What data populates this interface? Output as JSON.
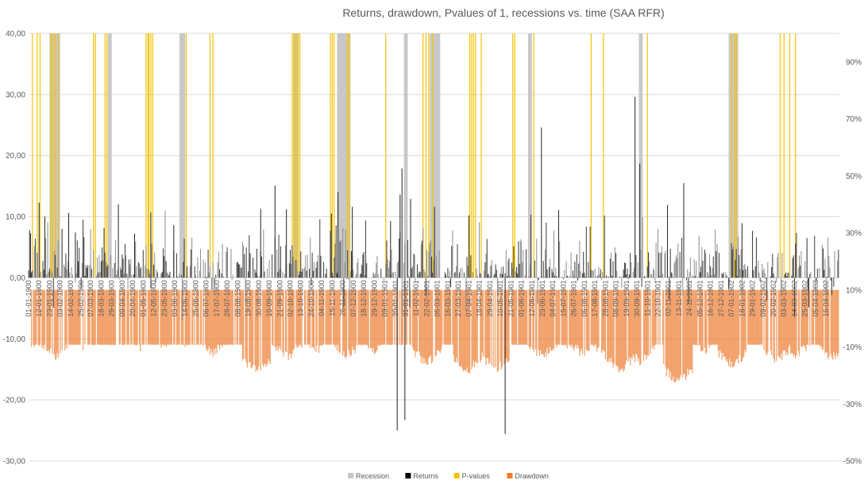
{
  "chart_data": {
    "type": "bar",
    "title": "Returns, drawdown, Pvalues of 1, recessions vs. time (SAA RFR)",
    "left_axis": {
      "ylim": [
        -30,
        40
      ],
      "ticks": [
        -30,
        -20,
        -10,
        0,
        10,
        20,
        30,
        40
      ],
      "tick_labels": [
        "-30,00",
        "-20,00",
        "-10,00",
        "0,00",
        "10,00",
        "20,00",
        "30,00",
        "40,00"
      ]
    },
    "right_axis": {
      "ylim": [
        -50,
        100
      ],
      "ticks": [
        -50,
        -30,
        -10,
        10,
        30,
        50,
        70,
        90
      ],
      "tick_labels": [
        "-50%",
        "-30%",
        "-10%",
        "10%",
        "30%",
        "50%",
        "70%",
        "90%"
      ]
    },
    "x_axis": {
      "start": "01-01-1900",
      "end": "30-04-1902",
      "tick_labels": [
        "01-01-1900",
        "12-01-1900",
        "23-01-1900",
        "03-02-1900",
        "14-02-1900",
        "25-02-1900",
        "07-03-1900",
        "18-03-1900",
        "29-03-1900",
        "09-04-1900",
        "20-04-1900",
        "01-05-1900",
        "12-05-1900",
        "23-05-1900",
        "03-06-1900",
        "14-06-1900",
        "25-06-1900",
        "06-07-1900",
        "17-07-1900",
        "28-07-1900",
        "08-08-1900",
        "19-08-1900",
        "30-08-1900",
        "10-09-1900",
        "21-09-1900",
        "02-10-1900",
        "13-10-1900",
        "24-10-1900",
        "04-11-1900",
        "15-11-1900",
        "26-11-1900",
        "07-12-1900",
        "18-12-1900",
        "29-12-1900",
        "09-01-1901",
        "20-01-1901",
        "31-01-1901",
        "11-02-1901",
        "22-02-1901",
        "05-03-1901",
        "16-03-1901",
        "27-03-1901",
        "07-04-1901",
        "18-04-1901",
        "29-04-1901",
        "10-05-1901",
        "21-05-1901",
        "01-06-1901",
        "12-06-1901",
        "23-06-1901",
        "04-07-1901",
        "15-07-1901",
        "26-07-1901",
        "06-08-1901",
        "17-08-1901",
        "28-08-1901",
        "08-09-1901",
        "19-09-1901",
        "30-09-1901",
        "11-10-1901",
        "22-10-1901",
        "02-11-1901",
        "13-11-1901",
        "24-11-1901",
        "05-12-1901",
        "16-12-1901",
        "27-12-1901",
        "07-01-1902",
        "18-01-1902",
        "29-01-1902",
        "09-02-1902",
        "20-02-1902",
        "03-03-1902",
        "14-03-1902",
        "25-03-1902",
        "05-04-1902",
        "16-04-1902"
      ]
    },
    "recession_periods": [
      [
        "23-01-1900",
        "03-02-1900"
      ],
      [
        "25-03-1900",
        "29-03-1900"
      ],
      [
        "08-06-1900",
        "14-06-1900"
      ],
      [
        "05-10-1900",
        "11-10-1900"
      ],
      [
        "20-11-1900",
        "04-12-1900"
      ],
      [
        "29-01-1901",
        "02-02-1901"
      ],
      [
        "25-02-1901",
        "08-03-1901"
      ],
      [
        "08-06-1901",
        "12-06-1901"
      ],
      [
        "02-10-1901",
        "06-10-1901"
      ],
      [
        "04-01-1902",
        "14-01-1902"
      ]
    ],
    "pvalue_dates": [
      "05-01-1900",
      "10-01-1900",
      "13-01-1900",
      "24-01-1900",
      "26-01-1900",
      "29-01-1900",
      "01-02-1900",
      "10-03-1900",
      "12-03-1900",
      "22-03-1900",
      "24-03-1900",
      "04-05-1900",
      "06-05-1900",
      "07-05-1900",
      "09-05-1900",
      "11-05-1900",
      "15-06-1900",
      "10-07-1900",
      "13-07-1900",
      "04-10-1900",
      "06-10-1900",
      "08-10-1900",
      "10-10-1900",
      "12-10-1900",
      "13-11-1900",
      "15-11-1900",
      "17-11-1900",
      "01-12-1900",
      "03-12-1900",
      "10-01-1901",
      "18-02-1901",
      "21-02-1901",
      "24-02-1901",
      "28-02-1901",
      "08-04-1901",
      "10-04-1901",
      "12-04-1901",
      "14-04-1901",
      "20-04-1901",
      "23-05-1901",
      "25-05-1901",
      "14-06-1901",
      "13-08-1901",
      "26-08-1901",
      "11-10-1901",
      "07-01-1902",
      "10-01-1902",
      "12-01-1902",
      "27-02-1902",
      "03-03-1902",
      "09-03-1902",
      "15-03-1902"
    ],
    "returns_peaks": [
      {
        "date": "03-01-1900",
        "value": 7.3
      },
      {
        "date": "12-01-1900",
        "value": 12.3
      },
      {
        "date": "18-01-1900",
        "value": 10.0
      },
      {
        "date": "05-02-1900",
        "value": 8.0
      },
      {
        "date": "12-02-1900",
        "value": 10.6
      },
      {
        "date": "19-02-1900",
        "value": 7.4
      },
      {
        "date": "05-04-1900",
        "value": 12.0
      },
      {
        "date": "22-04-1900",
        "value": 7.2
      },
      {
        "date": "09-05-1900",
        "value": 10.7
      },
      {
        "date": "02-06-1900",
        "value": 8.6
      },
      {
        "date": "01-09-1900",
        "value": 11.3
      },
      {
        "date": "16-09-1900",
        "value": 15.1
      },
      {
        "date": "28-09-1900",
        "value": 11.2
      },
      {
        "date": "14-11-1900",
        "value": 10.5
      },
      {
        "date": "21-11-1900",
        "value": 14.0
      },
      {
        "date": "06-12-1900",
        "value": 11.6
      },
      {
        "date": "15-01-1901",
        "value": 9.3
      },
      {
        "date": "22-01-1901",
        "value": -25.0
      },
      {
        "date": "25-01-1901",
        "value": 13.6
      },
      {
        "date": "27-01-1901",
        "value": 17.9
      },
      {
        "date": "30-01-1901",
        "value": -23.3
      },
      {
        "date": "05-02-1901",
        "value": 12.9
      },
      {
        "date": "02-03-1901",
        "value": 11.6
      },
      {
        "date": "07-04-1901",
        "value": 10.2
      },
      {
        "date": "15-05-1901",
        "value": -25.6
      },
      {
        "date": "22-06-1901",
        "value": 24.6
      },
      {
        "date": "10-07-1901",
        "value": 11.1
      },
      {
        "date": "28-09-1901",
        "value": 29.6
      },
      {
        "date": "03-10-1901",
        "value": 18.7
      },
      {
        "date": "01-11-1901",
        "value": 11.9
      },
      {
        "date": "18-11-1901",
        "value": 15.5
      },
      {
        "date": "18-01-1902",
        "value": 8.9
      },
      {
        "date": "27-03-1902",
        "value": 6.5
      }
    ],
    "drawdown_troughs": [
      {
        "date": "06-01-1900",
        "value": -11.4
      },
      {
        "date": "29-01-1900",
        "value": -14.6
      },
      {
        "date": "01-03-1900",
        "value": -11.5
      },
      {
        "date": "28-04-1900",
        "value": -11.0
      },
      {
        "date": "22-05-1900",
        "value": -10.5
      },
      {
        "date": "16-06-1900",
        "value": -10.2
      },
      {
        "date": "12-07-1900",
        "value": -13.7
      },
      {
        "date": "28-08-1900",
        "value": -20.0
      },
      {
        "date": "29-09-1900",
        "value": -14.9
      },
      {
        "date": "30-10-1900",
        "value": -12.3
      },
      {
        "date": "01-12-1900",
        "value": -14.3
      },
      {
        "date": "28-12-1900",
        "value": -12.6
      },
      {
        "date": "22-02-1901",
        "value": -17.0
      },
      {
        "date": "06-04-1901",
        "value": -19.6
      },
      {
        "date": "06-05-1901",
        "value": -19.4
      },
      {
        "date": "23-06-1901",
        "value": -14.6
      },
      {
        "date": "17-07-1901",
        "value": -10.8
      },
      {
        "date": "05-08-1901",
        "value": -14.0
      },
      {
        "date": "01-09-1901",
        "value": -15.7
      },
      {
        "date": "13-09-1901",
        "value": -19.3
      },
      {
        "date": "03-10-1901",
        "value": -16.5
      },
      {
        "date": "12-11-1901",
        "value": -23.6
      },
      {
        "date": "08-12-1901",
        "value": -13.0
      },
      {
        "date": "08-01-1902",
        "value": -17.7
      },
      {
        "date": "24-02-1902",
        "value": -16.1
      },
      {
        "date": "16-03-1902",
        "value": -14.2
      },
      {
        "date": "22-04-1902",
        "value": -15.3
      }
    ],
    "legend": {
      "placement": "bottom",
      "entries": [
        {
          "name": "Recession",
          "color": "#c8c8c8"
        },
        {
          "name": "Returns",
          "color": "#000000"
        },
        {
          "name": "P-values",
          "color": "#f6c200"
        },
        {
          "name": "Drawdown",
          "color": "#ed7d31"
        }
      ]
    },
    "grid": true
  }
}
